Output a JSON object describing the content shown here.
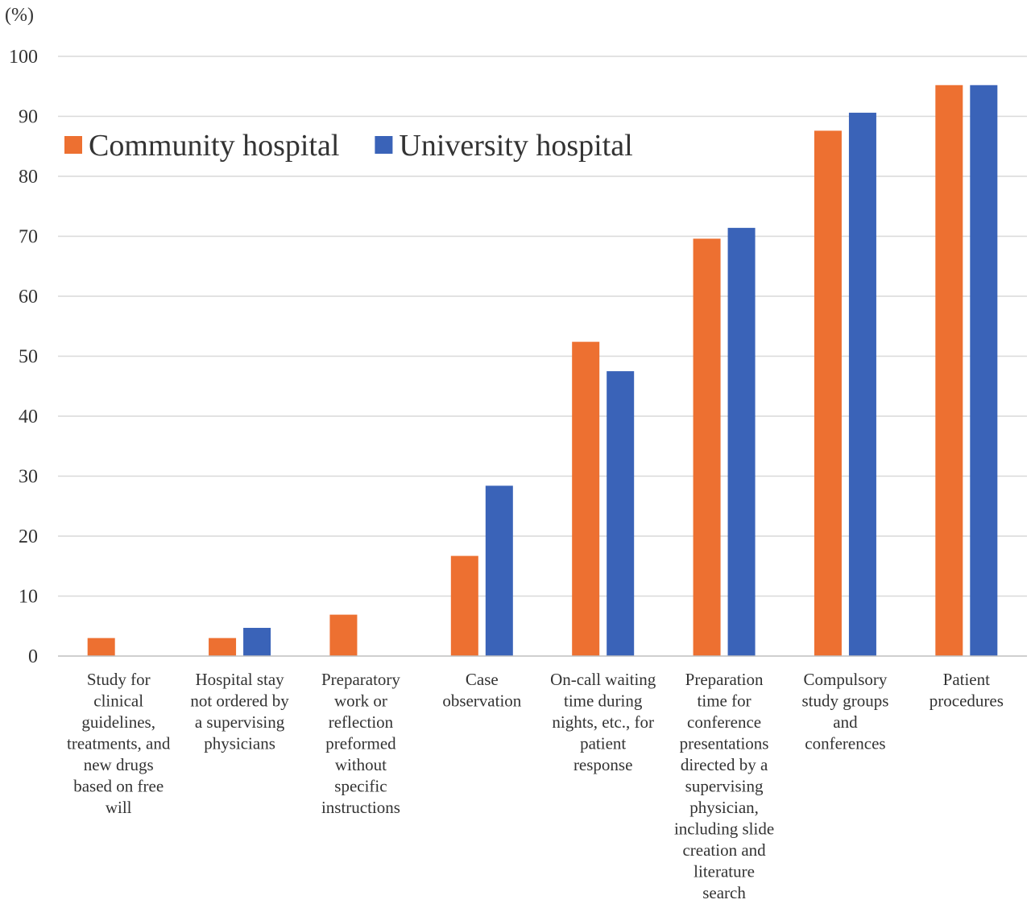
{
  "chart_data": {
    "type": "bar",
    "title": "",
    "unit_label": "(%)",
    "xlabel": "",
    "ylabel": "",
    "ylim": [
      0,
      100
    ],
    "yticks": [
      0,
      10,
      20,
      30,
      40,
      50,
      60,
      70,
      80,
      90,
      100
    ],
    "grid": true,
    "legend_position": "top-left",
    "categories": [
      [
        "Study for",
        "clinical",
        "guidelines,",
        "treatments, and",
        "new drugs",
        "based on free",
        "will"
      ],
      [
        "Hospital stay",
        "not ordered by",
        "a supervising",
        "physicians"
      ],
      [
        "Preparatory",
        "work or",
        "reflection",
        "preformed",
        "without",
        "specific",
        "instructions"
      ],
      [
        "Case",
        "observation"
      ],
      [
        "On-call waiting",
        "time during",
        "nights, etc., for",
        "patient",
        "response"
      ],
      [
        "Preparation",
        "time for",
        "conference",
        "presentations",
        "directed by a",
        "supervising",
        "physician,",
        "including slide",
        "creation and",
        "literature",
        "search"
      ],
      [
        "Compulsory",
        "study groups",
        "and",
        "conferences"
      ],
      [
        "Patient",
        "procedures"
      ]
    ],
    "series": [
      {
        "name": "Community hospital",
        "color": "#ed7031",
        "values": [
          3.0,
          3.0,
          6.9,
          16.7,
          52.4,
          69.6,
          87.6,
          95.2
        ]
      },
      {
        "name": "University hospital",
        "color": "#3a63b8",
        "values": [
          0,
          4.7,
          0,
          28.4,
          47.5,
          71.4,
          90.6,
          95.2
        ]
      }
    ]
  }
}
